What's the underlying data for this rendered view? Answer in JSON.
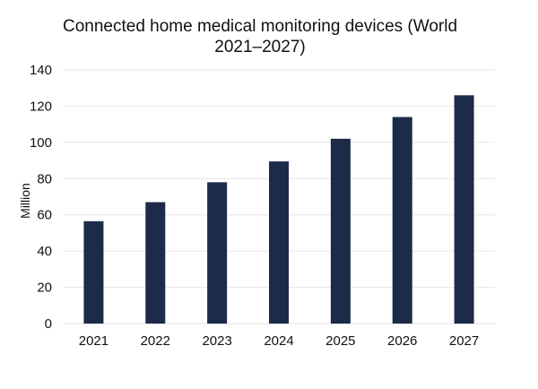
{
  "chart_data": {
    "type": "bar",
    "title_line1": "Connected home medical monitoring devices (World",
    "title_line2": "2021–2027)",
    "ylabel": "Million",
    "xlabel": "",
    "categories": [
      "2021",
      "2022",
      "2023",
      "2024",
      "2025",
      "2026",
      "2027"
    ],
    "values": [
      56.5,
      67,
      78,
      89.5,
      102,
      114,
      126
    ],
    "ylim": [
      0,
      140
    ],
    "yticks": [
      0,
      20,
      40,
      60,
      80,
      100,
      120,
      140
    ],
    "grid": true,
    "legend": "none",
    "bar_color": "#1c2b4a",
    "grid_color": "#e6e6e6"
  }
}
